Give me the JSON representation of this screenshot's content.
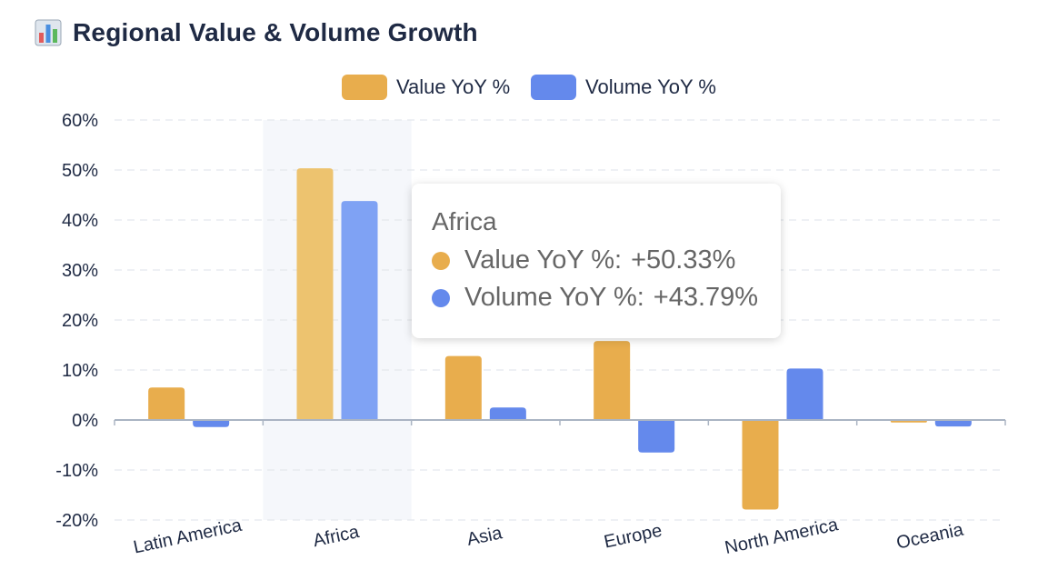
{
  "header": {
    "title": "Regional Value & Volume Growth",
    "icon": "bar-chart-icon"
  },
  "colors": {
    "value": "#e8ad4d",
    "volume": "#6489ec",
    "hover_band": "#f5f7fb"
  },
  "chart_data": {
    "type": "bar",
    "title": "Regional Value & Volume Growth",
    "categories": [
      "Latin America",
      "Africa",
      "Asia",
      "Europe",
      "North America",
      "Oceania"
    ],
    "series": [
      {
        "name": "Value YoY %",
        "values": [
          6.5,
          50.33,
          12.8,
          15.8,
          -17.9,
          -0.5
        ]
      },
      {
        "name": "Volume YoY %",
        "values": [
          -1.4,
          43.79,
          2.5,
          -6.5,
          10.3,
          -1.3
        ]
      }
    ],
    "ylim": [
      -20,
      60
    ],
    "yticks": [
      "60%",
      "50%",
      "40%",
      "30%",
      "20%",
      "10%",
      "0%",
      "-10%",
      "-20%"
    ],
    "grid": true,
    "legend": "top-center",
    "highlighted_category": "Africa"
  },
  "tooltip": {
    "title": "Africa",
    "rows": [
      {
        "label": "Value YoY %:",
        "value": "+50.33%"
      },
      {
        "label": "Volume YoY %:",
        "value": "+43.79%"
      }
    ]
  }
}
